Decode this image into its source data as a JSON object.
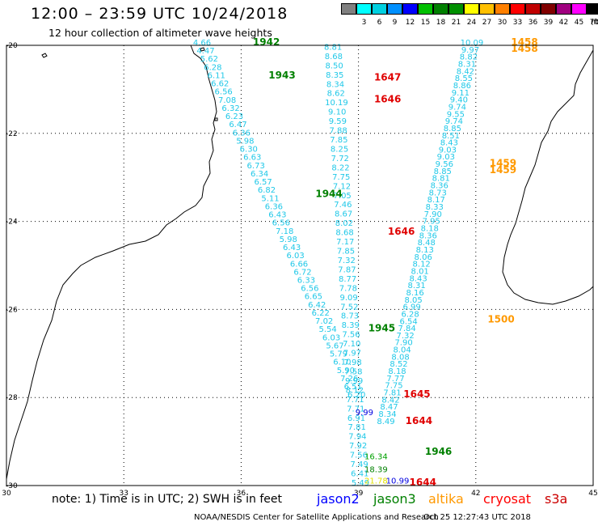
{
  "header": {
    "title": "12:00 – 23:59 UTC 10/24/2018",
    "subtitle": "12 hour collection of altimeter wave heights"
  },
  "color_scale": {
    "unit": "(ft)",
    "bins": [
      {
        "label": "",
        "color": "#808080"
      },
      {
        "label": "3",
        "color": "#00ffff"
      },
      {
        "label": "6",
        "color": "#00d0e0"
      },
      {
        "label": "9",
        "color": "#0090ff"
      },
      {
        "label": "12",
        "color": "#0000ff"
      },
      {
        "label": "15",
        "color": "#00c000"
      },
      {
        "label": "18",
        "color": "#008000"
      },
      {
        "label": "21",
        "color": "#009000"
      },
      {
        "label": "24",
        "color": "#ffff00"
      },
      {
        "label": "27",
        "color": "#ffc000"
      },
      {
        "label": "30",
        "color": "#ff8000"
      },
      {
        "label": "33",
        "color": "#ff0000"
      },
      {
        "label": "36",
        "color": "#c00000"
      },
      {
        "label": "39",
        "color": "#800000"
      },
      {
        "label": "42",
        "color": "#a00080"
      },
      {
        "label": "45",
        "color": "#ff00ff"
      },
      {
        "label": "70",
        "color": "#000000"
      }
    ]
  },
  "map": {
    "lon_range": [
      30,
      45
    ],
    "lat_range": [
      -30,
      -20
    ],
    "lon_ticks": [
      "30",
      "33",
      "36",
      "39",
      "42",
      "45"
    ],
    "lat_ticks": [
      "-20",
      "-22",
      "-24",
      "-26",
      "-28",
      "-30"
    ],
    "grid": "dotted"
  },
  "tracks": [
    {
      "name": "cyan-track-west",
      "color": "#20c8e8",
      "values": [
        "4.66",
        "4.47",
        "5.62",
        "6.28",
        "6.11",
        "6.62",
        "6.56",
        "7.08",
        "6.32",
        "6.23",
        "6.47",
        "6.36",
        "5.98",
        "6.30",
        "6.63",
        "6.73",
        "6.34",
        "6.57",
        "6.82",
        "5.11",
        "6.36",
        "6.43",
        "6.56",
        "7.18",
        "5.98",
        "6.43",
        "6.03",
        "6.66",
        "6.72",
        "6.33",
        "6.56",
        "6.65",
        "6.42",
        "6.22",
        "7.02",
        "5.54",
        "6.03",
        "5.67",
        "5.79",
        "6.10",
        "5.90",
        "7.26",
        "6.51",
        "6.20"
      ]
    },
    {
      "name": "cyan-track-middle",
      "color": "#20c8e8",
      "values": [
        "8.81",
        "8.68",
        "8.50",
        "8.35",
        "8.34",
        "8.62",
        "10.19",
        "9.10",
        "9.59",
        "7.88",
        "7.85",
        "8.25",
        "7.72",
        "8.22",
        "7.75",
        "7.12",
        "7.05",
        "7.46",
        "8.67",
        "8.02",
        "8.68",
        "7.17",
        "7.85",
        "7.32",
        "7.87",
        "8.77",
        "7.78",
        "9.09",
        "7.52",
        "8.73",
        "8.39",
        "7.56",
        "7.10",
        "7.97",
        "7.98",
        "7.58",
        "9.99",
        "8.12",
        "7.71",
        "7.71",
        "6.91",
        "7.81",
        "7.94",
        "7.92",
        "7.56",
        "7.49",
        "6.41",
        "5.49"
      ]
    },
    {
      "name": "cyan-track-east",
      "color": "#20c8e8",
      "values": [
        "10.09",
        "9.97",
        "8.82",
        "8.31",
        "8.42",
        "8.55",
        "8.86",
        "9.11",
        "9.40",
        "9.74",
        "9.55",
        "9.74",
        "8.85",
        "8.51",
        "8.43",
        "9.03",
        "9.03",
        "9.56",
        "8.85",
        "8.81",
        "8.36",
        "8.73",
        "8.17",
        "8.33",
        "7.90",
        "7.95",
        "8.18",
        "8.36",
        "8.48",
        "8.13",
        "8.06",
        "8.12",
        "8.01",
        "8.43",
        "8.31",
        "8.16",
        "8.05",
        "6.99",
        "6.28",
        "6.54",
        "7.84",
        "7.32",
        "7.90",
        "8.04",
        "8.08",
        "8.52",
        "8.18",
        "7.77",
        "7.75",
        "7.81",
        "8.42",
        "8.47",
        "8.34",
        "8.49"
      ]
    }
  ],
  "time_labels": [
    {
      "text": "1942",
      "color": "#008000"
    },
    {
      "text": "1943",
      "color": "#008000"
    },
    {
      "text": "1944",
      "color": "#008000"
    },
    {
      "text": "1945",
      "color": "#008000"
    },
    {
      "text": "1946",
      "color": "#008000"
    },
    {
      "text": "1647",
      "color": "#e00000"
    },
    {
      "text": "1646",
      "color": "#e00000"
    },
    {
      "text": "1646",
      "color": "#e00000"
    },
    {
      "text": "1645",
      "color": "#e00000"
    },
    {
      "text": "1644",
      "color": "#e00000"
    },
    {
      "text": "1644",
      "color": "#e00000"
    },
    {
      "text": "1458",
      "color": "#ff9900"
    },
    {
      "text": "1458",
      "color": "#ff9900"
    },
    {
      "text": "1459",
      "color": "#ff9900"
    },
    {
      "text": "1459",
      "color": "#ff9900"
    },
    {
      "text": "1500",
      "color": "#ff9900"
    }
  ],
  "other_values": [
    {
      "text": "16.34",
      "color": "#00a000"
    },
    {
      "text": "18.39",
      "color": "#008000"
    },
    {
      "text": "21.78",
      "color": "#e0e000"
    },
    {
      "text": "10.99",
      "color": "#0000e0"
    },
    {
      "text": "9.99",
      "color": "#0000e0"
    }
  ],
  "footer": {
    "note": "note:  1) Time is in UTC;  2) SWH is in feet",
    "legend": [
      {
        "text": "jason2",
        "color": "#0000ff"
      },
      {
        "text": "jason3",
        "color": "#008000"
      },
      {
        "text": "altika",
        "color": "#ff9900"
      },
      {
        "text": "cryosat",
        "color": "#ff0000"
      },
      {
        "text": "s3a",
        "color": "#cc0000"
      }
    ],
    "credit": "NOAA/NESDIS Center for Satellite Applications and Research",
    "timestamp": "Oct 25 12:27:43 UTC 2018"
  }
}
